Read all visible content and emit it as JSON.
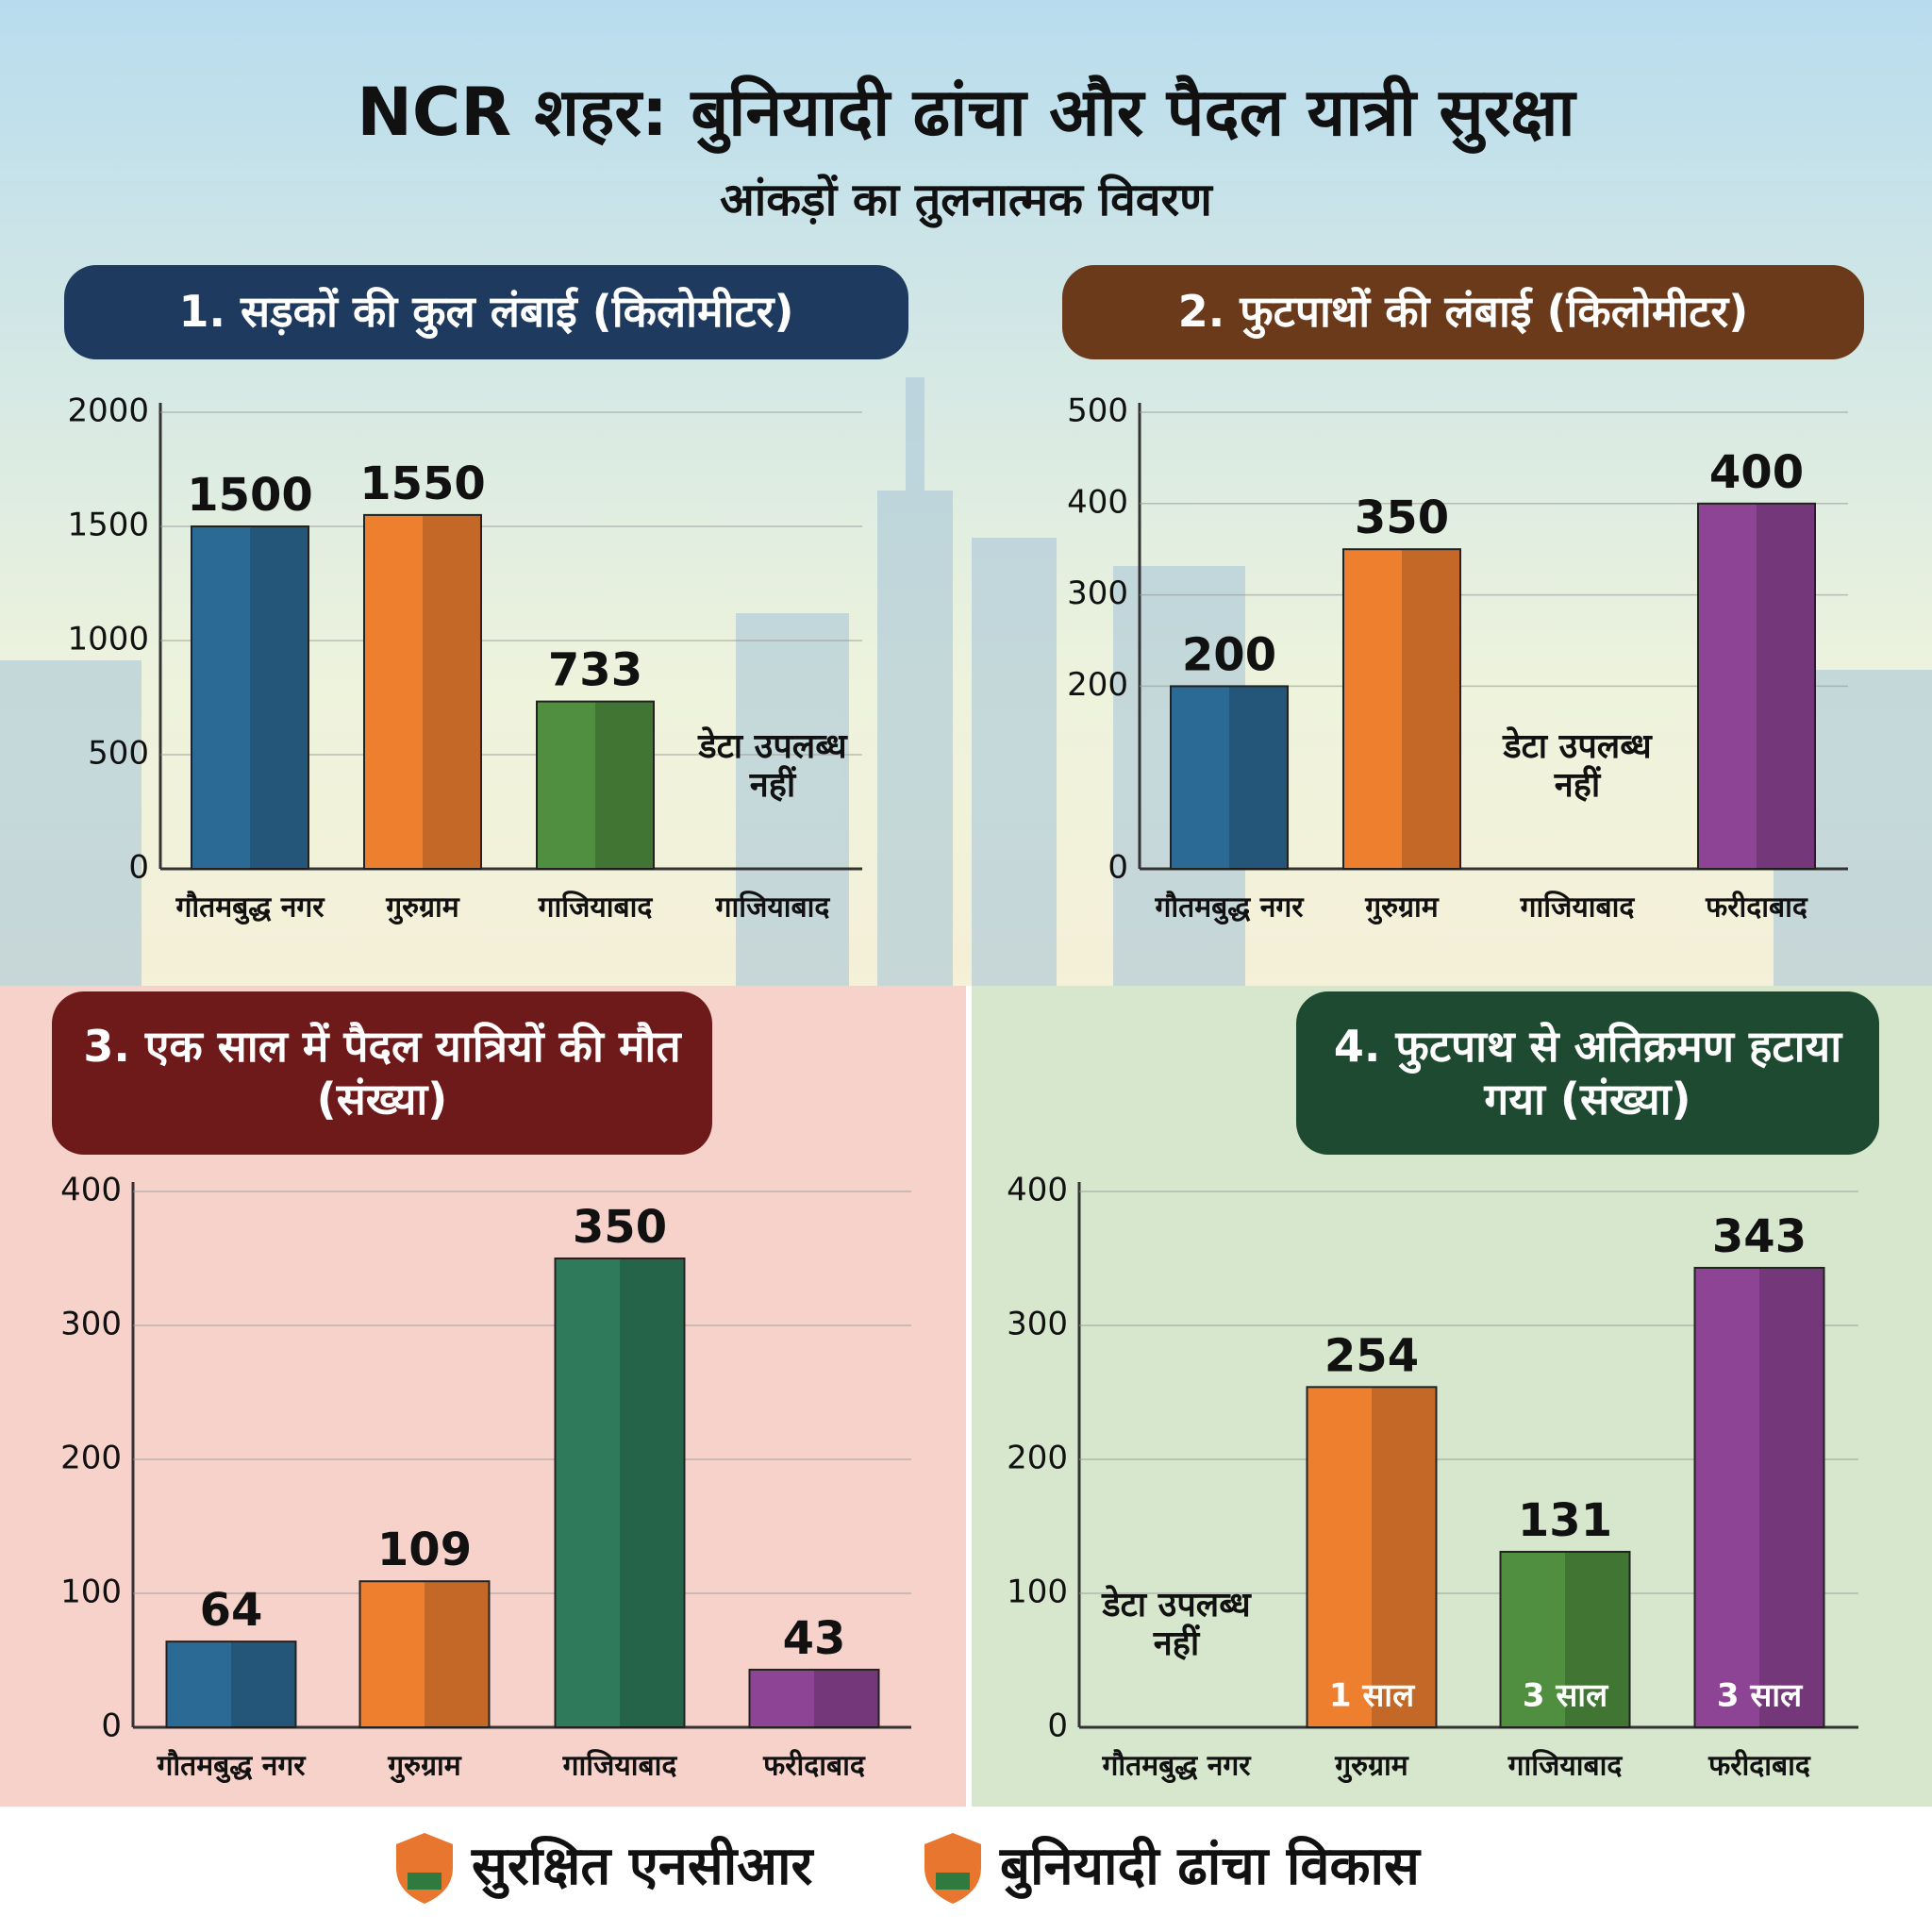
{
  "title": "NCR शहर: बुनियादी ढांचा और पैदल यात्री सुरक्षा",
  "subtitle": "आंकड़ों का तुलनात्मक विवरण",
  "footer": [
    "सुरक्षित एनसीआर",
    "बुनियादी ढांचा विकास"
  ],
  "chart_data": [
    {
      "type": "bar",
      "title": "1. सड़कों की कुल लंबाई (किलोमीटर)",
      "categories": [
        "गौतमबुद्ध नगर",
        "गुरुग्राम",
        "गाजियाबाद",
        "गाजियाबाद"
      ],
      "values": [
        1500,
        1550,
        733,
        null
      ],
      "colors": [
        "#2b6a94",
        "#ee7f2f",
        "#4f8f3f",
        "#4f8f3f"
      ],
      "no_data_label": "डेटा उपलब्ध नहीं",
      "ylim": [
        0,
        2000
      ],
      "yticks": [
        0,
        500,
        1000,
        1500,
        2000
      ],
      "grid": true
    },
    {
      "type": "bar",
      "title": "2. फुटपाथों की लंबाई (किलोमीटर)",
      "categories": [
        "गौतमबुद्ध नगर",
        "गुरुग्राम",
        "गाजियाबाद",
        "फरीदाबाद"
      ],
      "values": [
        200,
        350,
        null,
        400
      ],
      "colors": [
        "#2b6a94",
        "#ee7f2f",
        "#4f8f3f",
        "#8e4494"
      ],
      "no_data_label": "डेटा उपलब्ध नहीं",
      "ylim": [
        0,
        500
      ],
      "yticks": [
        0,
        200,
        300,
        400,
        500
      ],
      "grid": true
    },
    {
      "type": "bar",
      "title": "3. एक साल में पैदल यात्रियों की मौत (संख्या)",
      "categories": [
        "गौतमबुद्ध नगर",
        "गुरुग्राम",
        "गाजियाबाद",
        "फरीदाबाद"
      ],
      "values": [
        64,
        109,
        350,
        43
      ],
      "colors": [
        "#2b6a94",
        "#ee7f2f",
        "#2f7a5a",
        "#8e4494"
      ],
      "ylim": [
        0,
        400
      ],
      "yticks": [
        0,
        100,
        200,
        300,
        400
      ],
      "grid": true
    },
    {
      "type": "bar",
      "title": "4. फुटपाथ से अतिक्रमण हटाया गया (संख्या)",
      "categories": [
        "गौतमबुद्ध नगर",
        "गुरुग्राम",
        "गाजियाबाद",
        "फरीदाबाद"
      ],
      "values": [
        null,
        254,
        131,
        343
      ],
      "bar_notes": [
        null,
        "1 साल",
        "3 साल",
        "3 साल"
      ],
      "colors": [
        "#2b6a94",
        "#ee7f2f",
        "#4f8f3f",
        "#8e4494"
      ],
      "no_data_label": "डेटा उपलब्ध नहीं",
      "ylim": [
        0,
        400
      ],
      "yticks": [
        0,
        100,
        200,
        300,
        400
      ],
      "grid": true
    }
  ]
}
